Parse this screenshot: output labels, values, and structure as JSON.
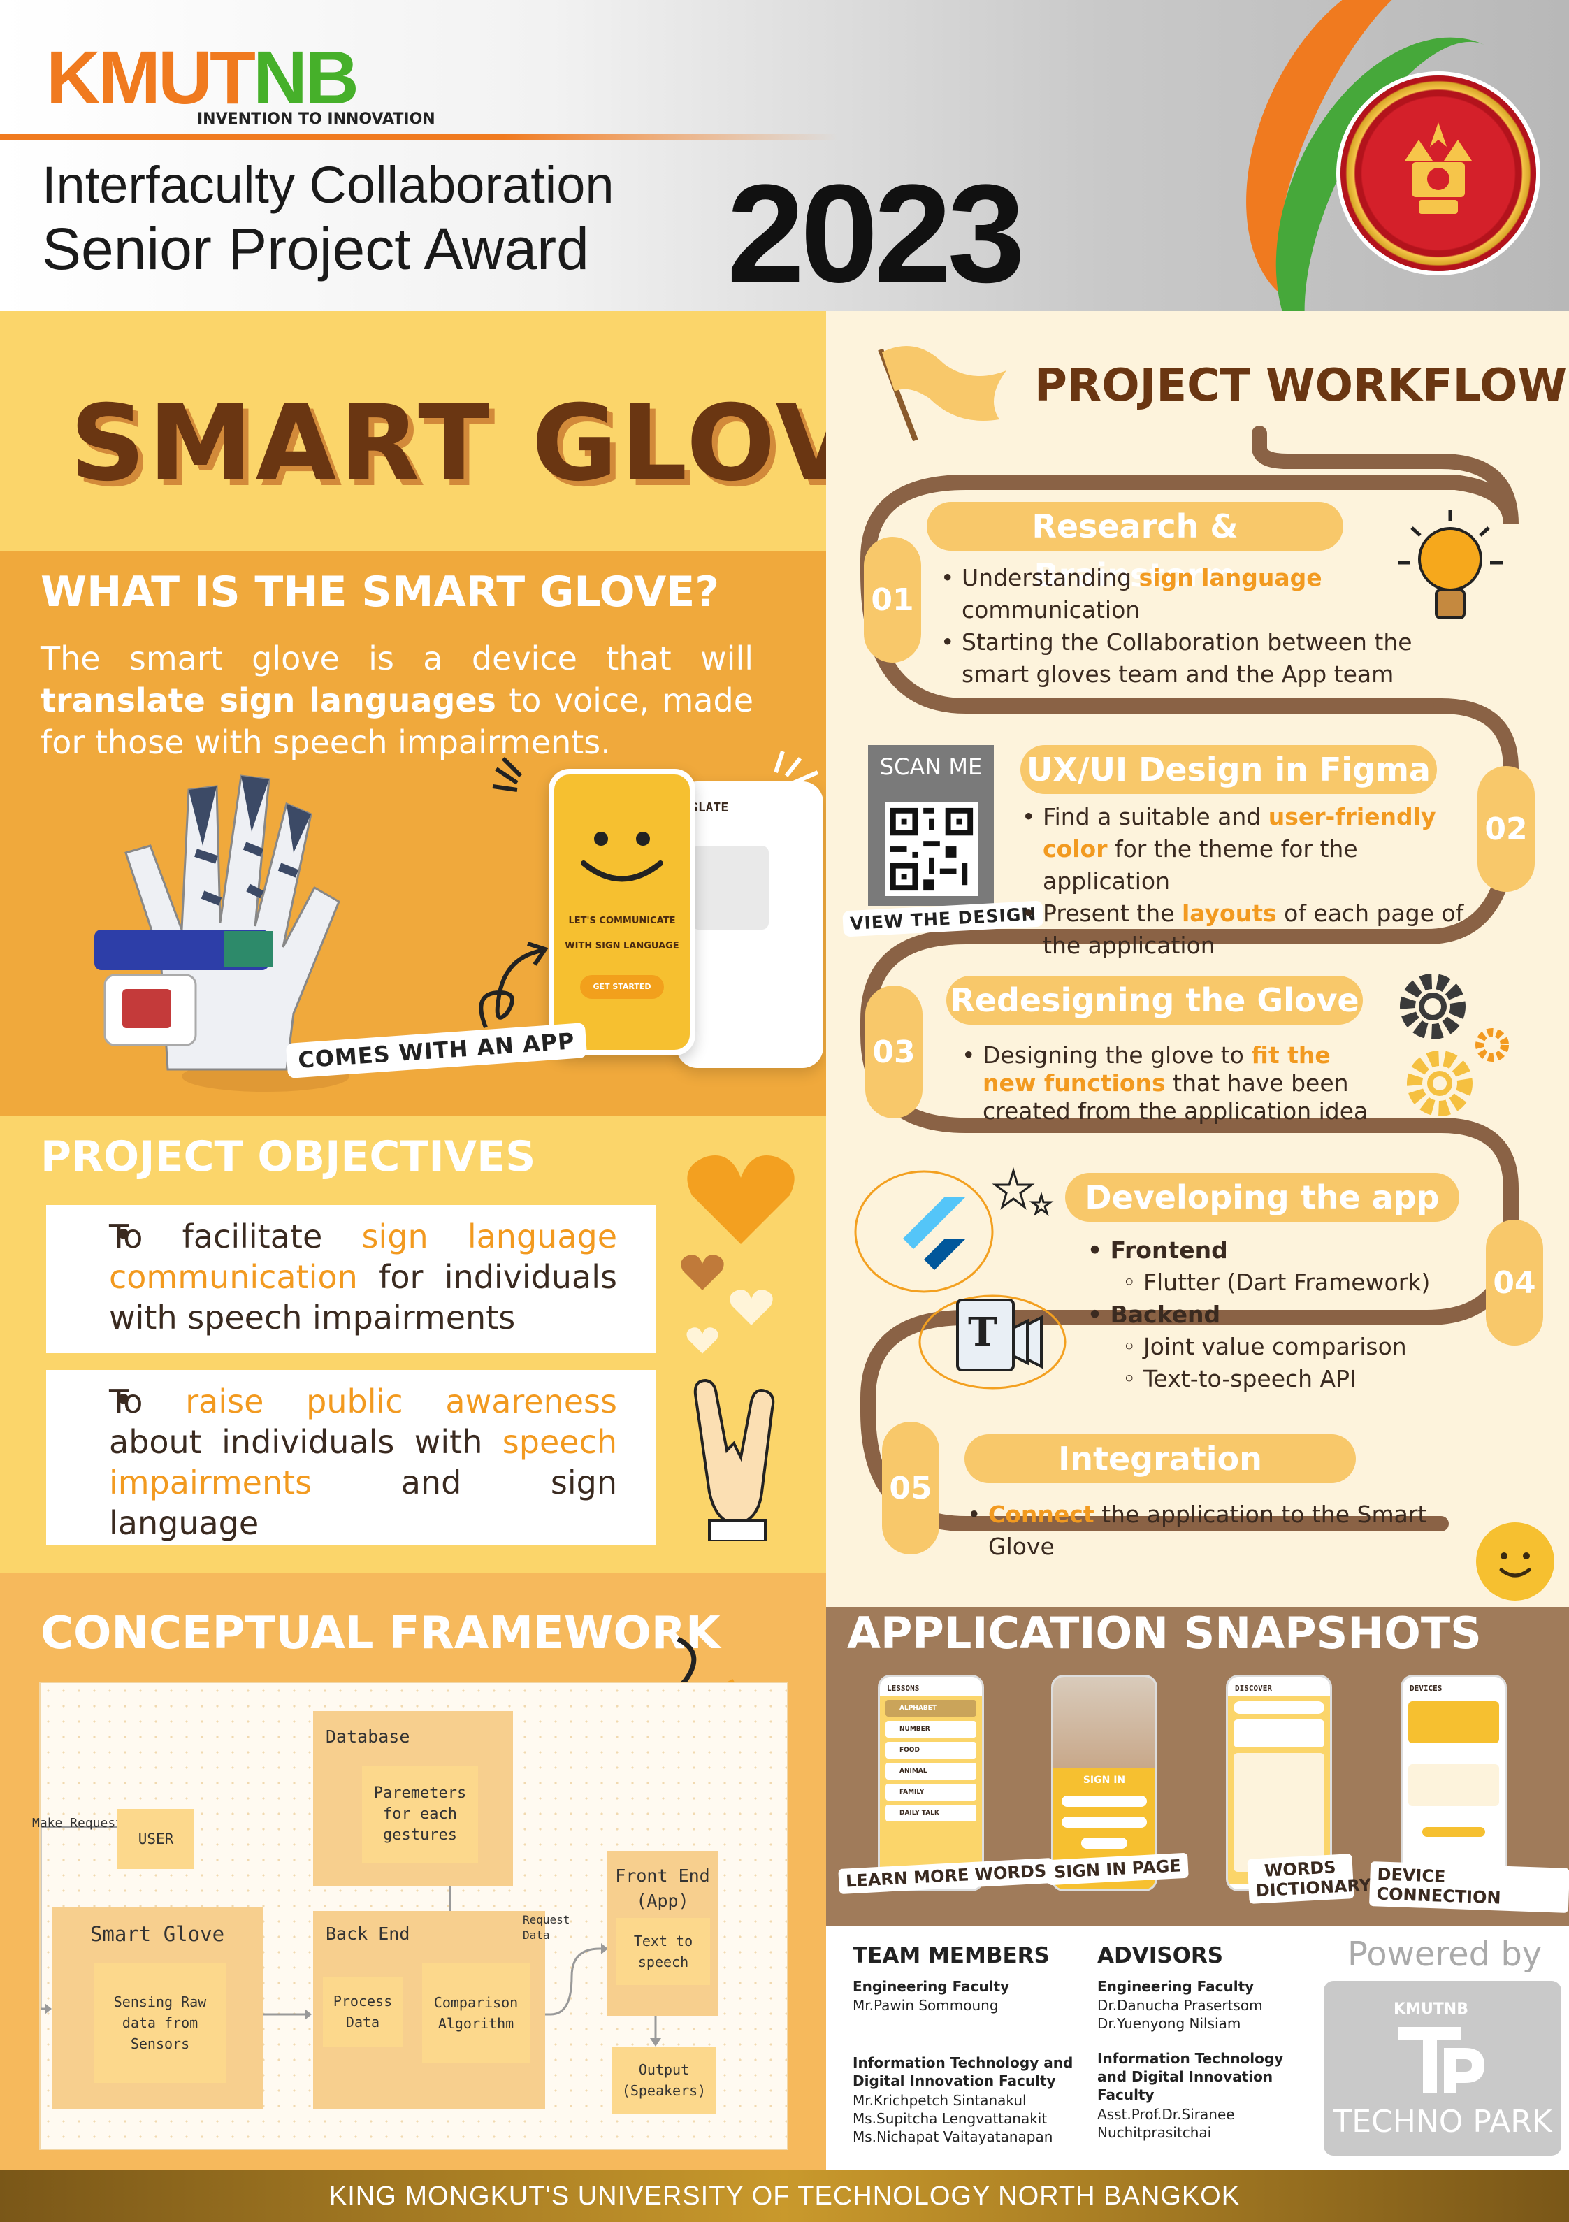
{
  "header": {
    "logo_main": "KMUT",
    "logo_accent": "NB",
    "logo_tagline": "INVENTION TO INNOVATION",
    "title_line1": "Interfaculty Collaboration",
    "title_line2": "Senior Project Award",
    "year": "2023"
  },
  "project": {
    "title": "SMART GLOVE",
    "what_heading": "WHAT IS THE SMART GLOVE?",
    "what_text_1": "The smart glove is a device that will ",
    "what_text_bold": "translate sign languages",
    "what_text_2": " to voice, made for those with speech impairments.",
    "app_note": "COMES WITH AN APP",
    "phone_text_1": "LET'S COMMUNICATE",
    "phone_text_2": "WITH SIGN LANGUAGE",
    "phone_button": "GET STARTED",
    "phone_back_title": "SLATE"
  },
  "objectives": {
    "heading": "PROJECT OBJECTIVES",
    "items": [
      {
        "pre": "To facilitate ",
        "hl": "sign language communication",
        "post": " for individuals with speech impairments",
        "hl2": "",
        "post2": ""
      },
      {
        "pre": "To ",
        "hl": "raise public awareness",
        "post": " about individuals with ",
        "hl2": "speech impairments",
        "post2": " and sign language"
      }
    ]
  },
  "framework": {
    "heading": "CONCEPTUAL FRAMEWORK",
    "database": "Database",
    "parameters": "Paremeters for each gestures",
    "make_request": "Make Request",
    "user": "USER",
    "smart_glove": "Smart Glove",
    "sensing": "Sensing Raw data from Sensors",
    "back_end": "Back End",
    "request_data": "Request Data",
    "process_data": "Process Data",
    "comparison": "Comparison Algorithm",
    "front_end": "Front End (App)",
    "tts": "Text to speech",
    "output": "Output (Speakers)"
  },
  "workflow": {
    "heading": "PROJECT WORKFLOW",
    "scan_me": "SCAN ME",
    "view_design": "VIEW THE DESIGN",
    "steps": [
      {
        "num": "01",
        "title": "Research & Brainstorm",
        "b1_pre": "Understanding ",
        "b1_hl": "sign language",
        "b1_post": " communication",
        "b2": "Starting the Collaboration between the smart gloves team and the App team"
      },
      {
        "num": "02",
        "title": "UX/UI Design in Figma",
        "b1_pre": "Find a suitable and ",
        "b1_hl": "user-friendly color",
        "b1_post": " for the theme for the application",
        "b2_pre": "Present the ",
        "b2_hl": "layouts",
        "b2_post": " of each page of the application"
      },
      {
        "num": "03",
        "title": "Redesigning the Glove",
        "b1_pre": "Designing the glove to ",
        "b1_hl": "fit the new functions",
        "b1_post": " that have been created from the application idea"
      },
      {
        "num": "04",
        "title": "Developing the app",
        "frontend": "Frontend",
        "frontend_item": "Flutter (Dart Framework)",
        "backend": "Backend",
        "backend_item1": "Joint value comparison",
        "backend_item2": "Text-to-speech API"
      },
      {
        "num": "05",
        "title": "Integration",
        "b1_hl": "Connect",
        "b1_post": " the application to the Smart Glove"
      }
    ]
  },
  "snapshots": {
    "heading": "APPLICATION SNAPSHOTS",
    "labels": [
      "LEARN MORE WORDS",
      "SIGN IN PAGE",
      "WORDS DICTIONARY",
      "DEVICE CONNECTION"
    ],
    "lessons_title": "LESSONS",
    "lessons": [
      "ALPHABET",
      "NUMBER",
      "FOOD",
      "ANIMAL",
      "FAMILY",
      "DAILY TALK"
    ],
    "signin_title": "SIGN IN",
    "discover_title": "DISCOVER",
    "devices_title": "DEVICES"
  },
  "team": {
    "members_heading": "TEAM MEMBERS",
    "advisors_heading": "ADVISORS",
    "eng_faculty": "Engineering Faculty",
    "it_faculty": "Information Technology and Digital Innovation Faculty",
    "member_eng": "Mr.Pawin Sommoung",
    "member_it_1": "Mr.Krichpetch Sintanakul",
    "member_it_2": "Ms.Supitcha Lengvattanakit",
    "member_it_3": "Ms.Nichapat Vaitayatanapan",
    "advisor_eng_1": "Dr.Danucha Prasertsom",
    "advisor_eng_2": "Dr.Yuenyong Nilsiam",
    "advisor_it_1": "Asst.Prof.Dr.Siranee",
    "advisor_it_2": "Nuchitprasitchai",
    "powered_by": "Powered by",
    "techno_park": "TECHNO PARK",
    "tp_logo": "KMUTNB"
  },
  "footer": "KING MONGKUT'S UNIVERSITY OF TECHNOLOGY NORTH BANGKOK",
  "colors": {
    "accent": "#f29a20",
    "brown": "#6a3612",
    "yellow": "#fbd56a"
  }
}
